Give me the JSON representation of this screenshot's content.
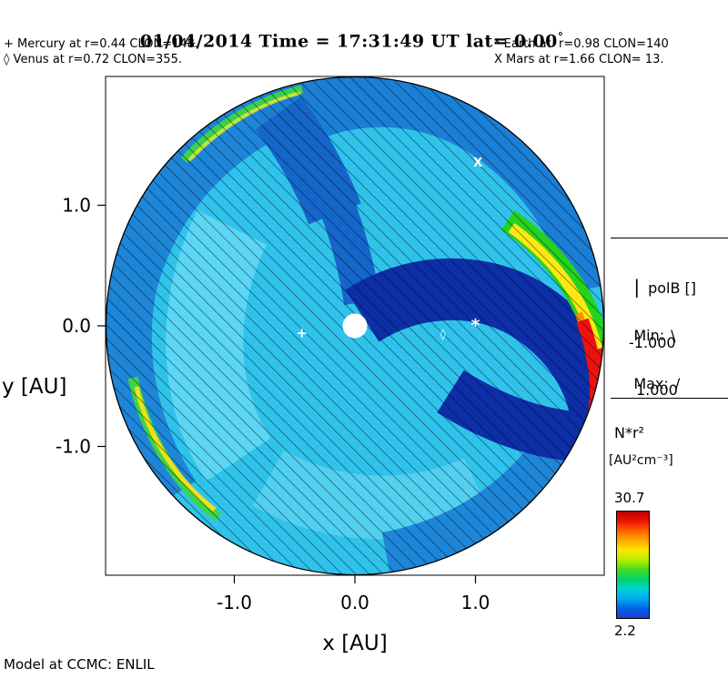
{
  "header": {
    "title": "01/04/2014 Time = 17:31:49 UT lat= 0.00",
    "degree": "°"
  },
  "planet_legend": {
    "mercury": "+ Mercury at r=0.44 CLON=148.",
    "venus": "◊ Venus at r=0.72 CLON=355.",
    "earth": "* Earth at  r=0.98 CLON=140",
    "mars": "X Mars at r=1.66 CLON= 13."
  },
  "axes": {
    "x_label": "x [AU]",
    "y_label": "y [AU]"
  },
  "polb_legend": {
    "line_sample": "|",
    "title": "polB []",
    "min_label": "Min:",
    "min_sample": "\\",
    "min_value": "-1.000",
    "max_label": "Max:",
    "max_sample": "/",
    "max_value": "1.000"
  },
  "colorbar": {
    "quantity": "N*r²",
    "units": "[AU²cm⁻³]",
    "max": "30.7",
    "min": "2.2",
    "gradient": [
      "#b40000",
      "#ee1400",
      "#ff6400",
      "#ffaa00",
      "#ffe600",
      "#b4ee00",
      "#46dc1e",
      "#00d26e",
      "#00d2d2",
      "#00aaf0",
      "#0064e6",
      "#1e3cd2"
    ]
  },
  "footer": {
    "model_label": "Model at CCMC: ENLIL"
  },
  "chart_data": {
    "type": "heatmap",
    "title": "01/04/2014 Time = 17:31:49 UT lat= 0.00°",
    "model": "ENLIL",
    "credit": "Model at CCMC: ENLIL",
    "quantity": "N*r²",
    "quantity_units": "AU²cm⁻³",
    "color_scale": {
      "min": 2.2,
      "max": 30.7
    },
    "xlabel": "x [AU]",
    "ylabel": "y [AU]",
    "xlim": [
      -2.07,
      2.07
    ],
    "ylim": [
      -2.07,
      2.07
    ],
    "xticks": [
      -1.0,
      0.0,
      1.0
    ],
    "yticks": [
      -1.0,
      0.0,
      1.0
    ],
    "overlay_polarity": {
      "name": "polB",
      "min": -1.0,
      "max": 1.0,
      "min_hatch": "\\",
      "max_hatch": "/"
    },
    "planets": [
      {
        "name": "Mercury",
        "symbol": "+",
        "r_au": 0.44,
        "clon_deg": 148,
        "plot_x_au": -0.44,
        "plot_y_au": -0.06
      },
      {
        "name": "Venus",
        "symbol": "◊",
        "r_au": 0.72,
        "clon_deg": 355,
        "plot_x_au": 0.73,
        "plot_y_au": -0.06
      },
      {
        "name": "Earth",
        "symbol": "*",
        "r_au": 0.98,
        "clon_deg": 140,
        "plot_x_au": 1.0,
        "plot_y_au": 0.02
      },
      {
        "name": "Mars",
        "symbol": "X",
        "r_au": 1.66,
        "clon_deg": 13,
        "plot_x_au": 1.02,
        "plot_y_au": 1.36
      }
    ]
  }
}
